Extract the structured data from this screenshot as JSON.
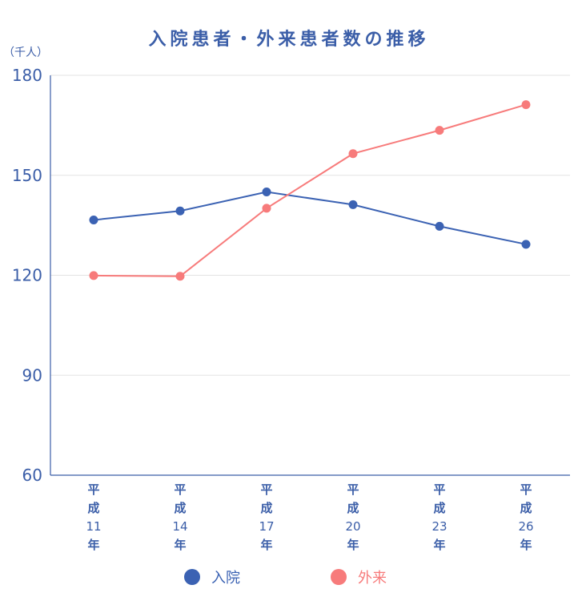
{
  "chart_data": {
    "type": "line",
    "title": "入院患者・外来患者数の推移",
    "unit_label": "（千人）",
    "xlabel": "",
    "ylabel": "",
    "ylim": [
      60,
      180
    ],
    "yticks": [
      60,
      90,
      120,
      150,
      180
    ],
    "categories": [
      [
        "平",
        "成",
        "11",
        "年"
      ],
      [
        "平",
        "成",
        "14",
        "年"
      ],
      [
        "平",
        "成",
        "17",
        "年"
      ],
      [
        "平",
        "成",
        "20",
        "年"
      ],
      [
        "平",
        "成",
        "23",
        "年"
      ],
      [
        "平",
        "成",
        "26",
        "年"
      ]
    ],
    "series": [
      {
        "name": "入院",
        "color": "#3b62b3",
        "values": [
          136.6,
          139.3,
          145.0,
          141.2,
          134.7,
          129.3
        ]
      },
      {
        "name": "外来",
        "color": "#f77b7b",
        "values": [
          119.9,
          119.7,
          140.1,
          156.5,
          163.5,
          171.2
        ]
      }
    ],
    "grid": true,
    "legend": "bottom"
  },
  "colors": {
    "axis": "#3b5ea8",
    "text": "#3b5ea8",
    "grid": "#e3e3e3"
  }
}
